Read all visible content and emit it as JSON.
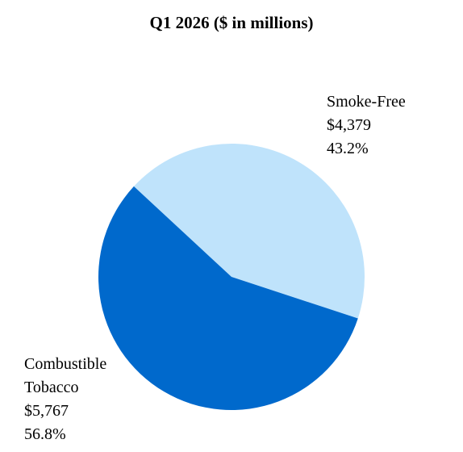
{
  "chart_data": {
    "type": "pie",
    "title": "Q1 2026 ($ in millions)",
    "categories": [
      "Smoke-Free",
      "Combustible Tobacco"
    ],
    "values": [
      4379,
      5767
    ],
    "value_labels": [
      "$4,379",
      "$5,767"
    ],
    "percentages": [
      {
        "value": 43.2,
        "label": "43.2%"
      },
      {
        "value": 56.8,
        "label": "56.8%"
      }
    ],
    "colors": [
      "#bfe3fb",
      "#0069cc"
    ]
  }
}
